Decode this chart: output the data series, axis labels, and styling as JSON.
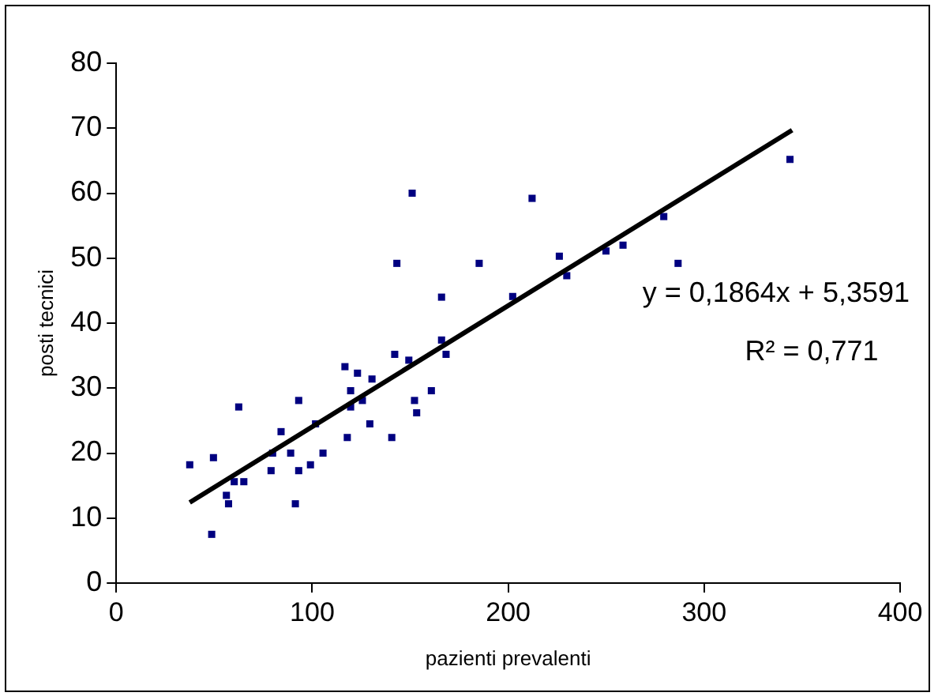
{
  "chart_data": {
    "type": "scatter",
    "xlabel": "pazienti prevalenti",
    "ylabel": "posti tecnici",
    "xlim": [
      0,
      400
    ],
    "xticks": [
      0,
      100,
      200,
      300,
      400
    ],
    "ylim": [
      0,
      80
    ],
    "yticks": [
      0,
      10,
      20,
      30,
      40,
      50,
      60,
      70,
      80
    ],
    "grid": false,
    "legend": false,
    "marker": "square",
    "series": [
      {
        "color": "#000080",
        "x": [
          37.5,
          49.6,
          48.7,
          56.2,
          57.3,
          60.2,
          65.1,
          62.5,
          79.0,
          79.8,
          84.1,
          89.0,
          91.4,
          93.1,
          93.1,
          99.1,
          101.7,
          105.5,
          116.7,
          117.9,
          119.6,
          119.6,
          123.1,
          125.6,
          129.4,
          130.5,
          140.6,
          142.1,
          143.2,
          149.3,
          151.0,
          152.2,
          153.3,
          160.8,
          166.0,
          166.0,
          168.3,
          185.2,
          212.2,
          202.3,
          226.1,
          229.9,
          249.9,
          258.6,
          279.4,
          286.7,
          343.8
        ],
        "values": [
          18.2,
          19.3,
          7.5,
          13.5,
          12.2,
          15.6,
          15.6,
          27.1,
          17.3,
          20.0,
          23.3,
          20.0,
          12.2,
          17.3,
          28.1,
          18.2,
          24.5,
          20.0,
          33.3,
          22.4,
          29.6,
          27.1,
          32.3,
          28.1,
          24.5,
          31.4,
          22.4,
          35.2,
          49.2,
          34.3,
          60.0,
          28.1,
          26.2,
          29.6,
          44.0,
          37.4,
          35.2,
          49.2,
          59.2,
          44.1,
          50.3,
          47.3,
          51.1,
          52.0,
          56.4,
          49.2,
          65.2
        ]
      },
      {
        "type": "line",
        "marker": "none",
        "color": "#000000",
        "x": [
          37.5,
          344.9
        ],
        "values": [
          12.4,
          69.7
        ]
      }
    ],
    "annotations": [
      "y = 0,1864x + 5,3591",
      "R² = 0,771"
    ]
  }
}
